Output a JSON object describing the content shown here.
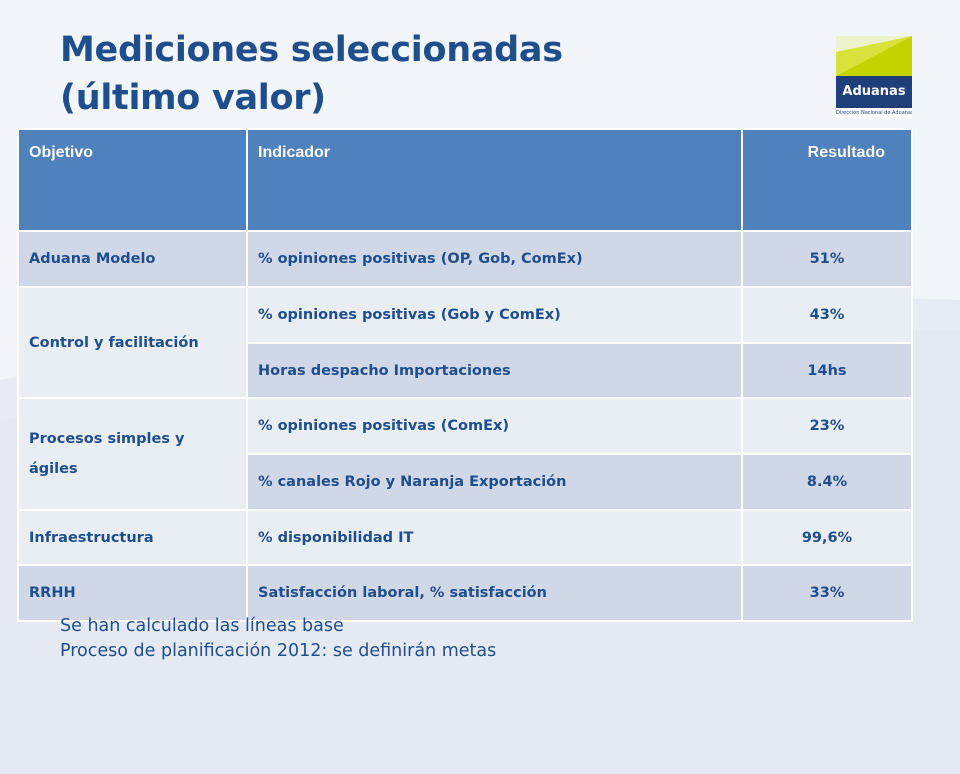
{
  "title_line1": "Mediciones seleccionadas",
  "title_line2": "(último valor)",
  "logo": {
    "name": "Aduanas",
    "subtitle": "Dirección Nacional de Aduanas"
  },
  "table": {
    "headers": [
      "Objetivo",
      "Indicador",
      "Resultado"
    ],
    "objectives": {
      "aduana_modelo": "Aduana Modelo",
      "control": "Control y facilitación",
      "procesos": "Procesos simples y ágiles",
      "infraestructura": "Infraestructura",
      "rrhh": "RRHH"
    },
    "rows": [
      {
        "indicator": "% opiniones positivas (OP, Gob, ComEx)",
        "value": "51%"
      },
      {
        "indicator": "% opiniones positivas (Gob y ComEx)",
        "value": "43%"
      },
      {
        "indicator": "Horas despacho Importaciones",
        "value": "14hs"
      },
      {
        "indicator": "% opiniones positivas (ComEx)",
        "value": "23%"
      },
      {
        "indicator": "% canales Rojo y Naranja Exportación",
        "value": "8.4%"
      },
      {
        "indicator": "% disponibilidad IT",
        "value": "99,6%"
      },
      {
        "indicator": "Satisfacción laboral, % satisfacción",
        "value": "33%"
      }
    ]
  },
  "notes": [
    "Se han calculado las líneas base",
    "Proceso de planificación 2012: se definirán metas"
  ],
  "colors": {
    "header_bg": "#4f81bd",
    "row_dark": "#d0d8e8",
    "row_light": "#e9edf4",
    "text": "#1f4e8c"
  }
}
